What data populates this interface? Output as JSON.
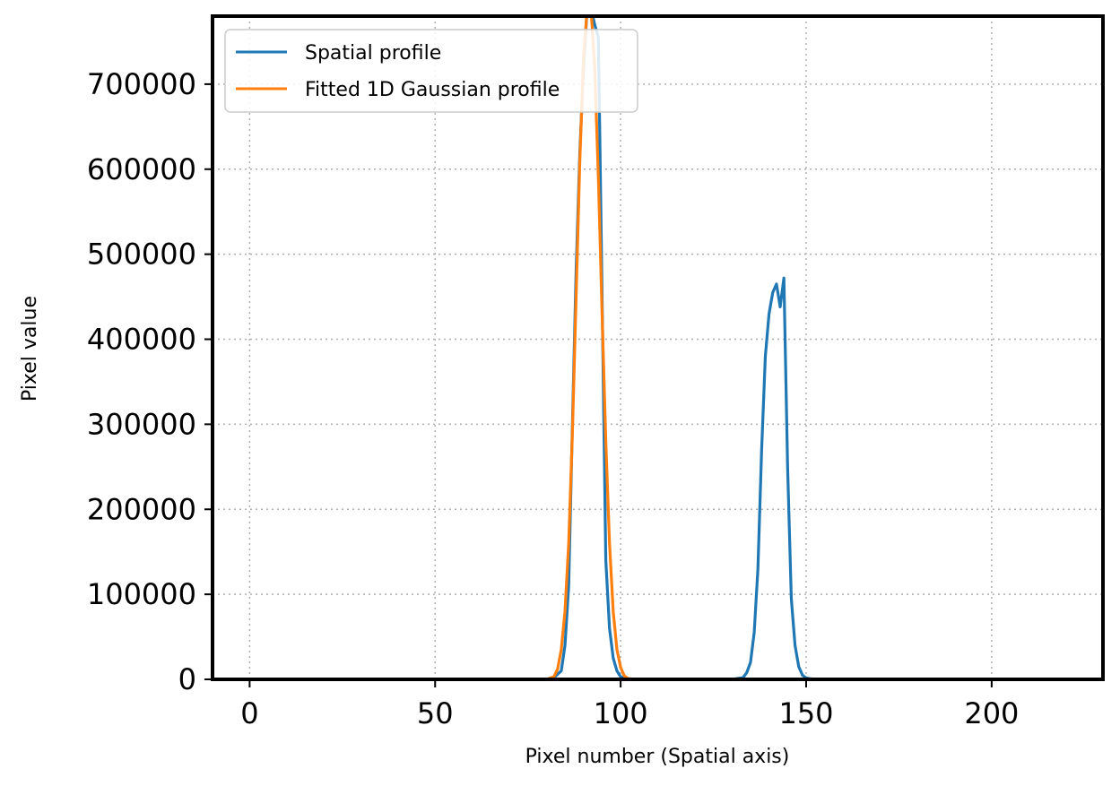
{
  "chart_data": {
    "type": "line",
    "title": "",
    "xlabel": "Pixel number (Spatial axis)",
    "ylabel": "Pixel value",
    "xlim": [
      -10,
      230
    ],
    "ylim": [
      0,
      780000
    ],
    "xticks": [
      0,
      50,
      100,
      150,
      200
    ],
    "yticks": [
      0,
      100000,
      200000,
      300000,
      400000,
      500000,
      600000,
      700000
    ],
    "grid": true,
    "legend_position": "upper-left",
    "series": [
      {
        "name": "Spatial profile",
        "color": "#1f77b4",
        "x": [
          0,
          80,
          82,
          84,
          85,
          86,
          87,
          88,
          89,
          90,
          91,
          92,
          93,
          94,
          95,
          96,
          97,
          98,
          99,
          100,
          102,
          105,
          130,
          133,
          134,
          135,
          136,
          137,
          138,
          139,
          140,
          141,
          142,
          143,
          144,
          145,
          146,
          147,
          148,
          149,
          150,
          152,
          155,
          225
        ],
        "y": [
          0,
          0,
          2000,
          10000,
          40000,
          110000,
          300000,
          480000,
          620000,
          720000,
          790000,
          790000,
          770000,
          755000,
          450000,
          140000,
          60000,
          25000,
          10000,
          3000,
          500,
          0,
          0,
          2000,
          8000,
          20000,
          55000,
          130000,
          270000,
          380000,
          430000,
          455000,
          465000,
          438000,
          472000,
          250000,
          95000,
          40000,
          15000,
          5000,
          1500,
          200,
          0,
          0
        ]
      },
      {
        "name": "Fitted 1D Gaussian profile",
        "color": "#ff7f0e",
        "x": [
          0,
          80,
          82,
          83,
          84,
          85,
          86,
          87,
          88,
          89,
          90,
          91,
          92,
          93,
          94,
          95,
          96,
          97,
          98,
          99,
          100,
          101,
          102,
          104,
          225
        ],
        "y": [
          0,
          0,
          3000,
          12000,
          35000,
          80000,
          160000,
          290000,
          450000,
          610000,
          730000,
          790000,
          790000,
          720000,
          590000,
          430000,
          280000,
          160000,
          80000,
          35000,
          14000,
          4000,
          1000,
          0,
          0
        ]
      }
    ]
  }
}
